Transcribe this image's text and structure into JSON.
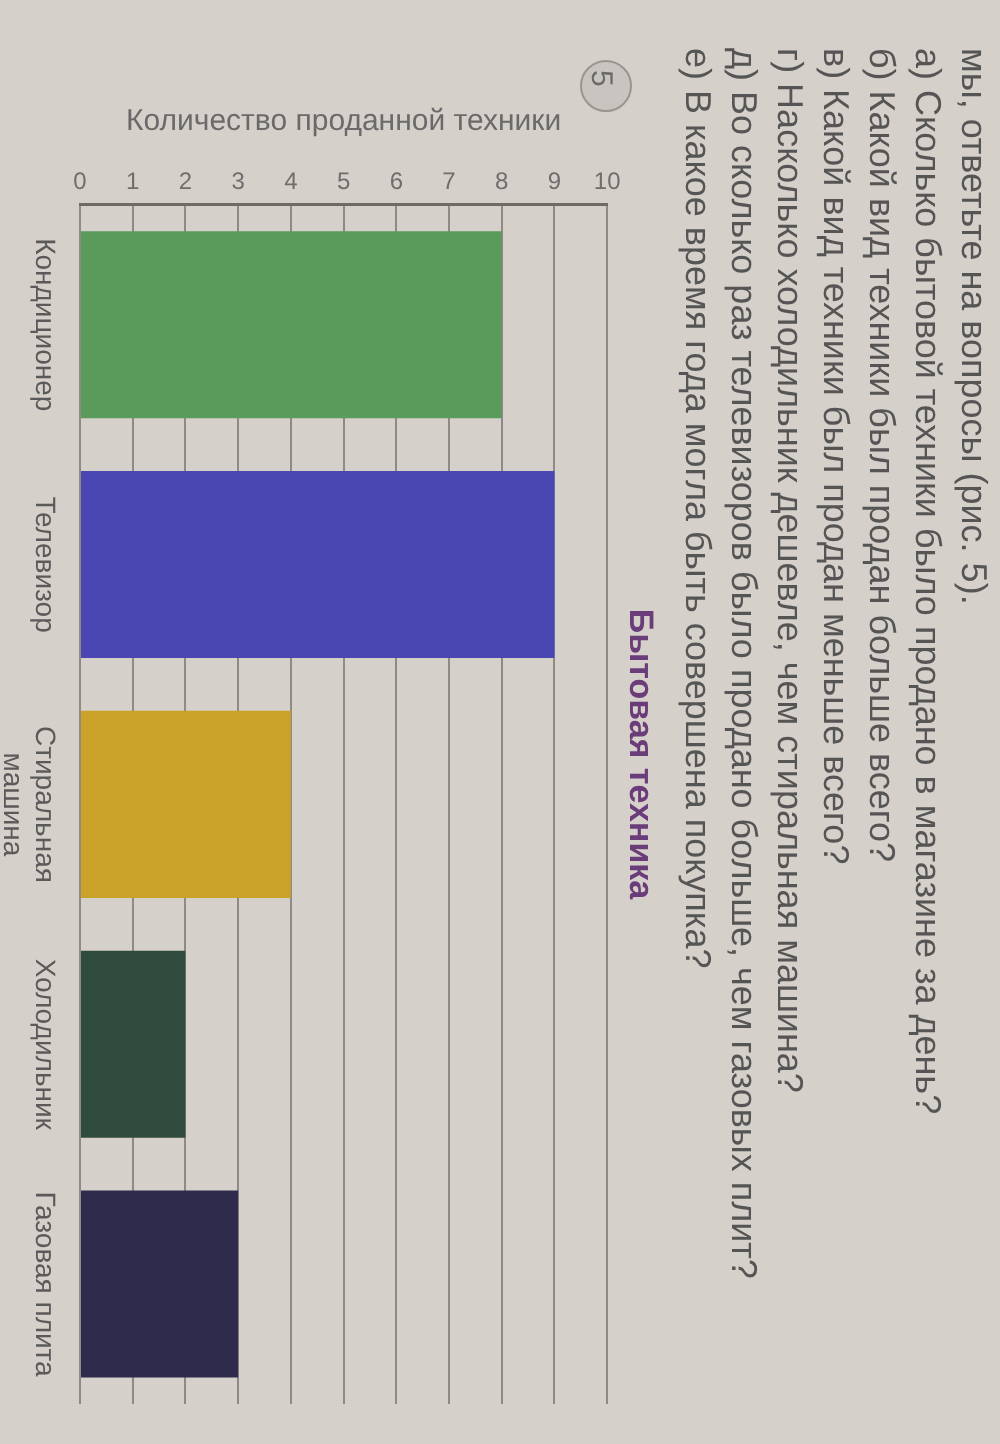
{
  "chart_data": {
    "type": "bar",
    "orientation": "horizontal",
    "title": "Бытовая техника",
    "xlabel": "Количество проданной техники",
    "categories": [
      "Кондиционер",
      "Телевизор",
      "Стиральная машина",
      "Холодильник",
      "Газовая плита"
    ],
    "values": [
      8,
      9,
      4,
      2,
      3
    ],
    "colors": [
      "#5a9b5c",
      "#4a47b2",
      "#c9a227",
      "#2f4b3d",
      "#2e2b4d"
    ],
    "xlim": [
      0,
      10
    ],
    "xticks": [
      0,
      1,
      2,
      3,
      4,
      5,
      6,
      7,
      8,
      9,
      10
    ],
    "grid": "x",
    "annotations": [
      "мы, ответьте на вопросы (рис. 5).",
      "а) Сколько бытовой техники было продано в магазине за день?",
      "б) Какой вид техники был продан больше всего?",
      "в) Какой вид техники был продан меньше всего?",
      "г) Насколько холодильник дешевле, чем стиральная машина?",
      "д) Во сколько раз телевизоров было продано больше, чем газовых плит?",
      "е) В какое время года могла быть совершена покупка?",
      "5"
    ]
  }
}
